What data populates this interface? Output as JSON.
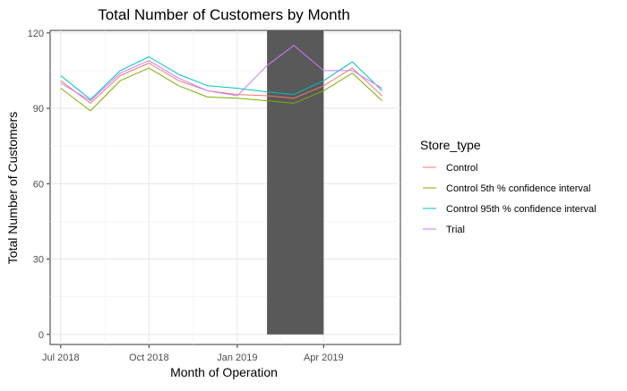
{
  "chart_data": {
    "type": "line",
    "title": "Total Number of Customers by Month",
    "xlabel": "Month of Operation",
    "ylabel": "Total Number of Customers",
    "x": [
      "2018-07",
      "2018-08",
      "2018-09",
      "2018-10",
      "2018-11",
      "2018-12",
      "2019-01",
      "2019-02",
      "2019-03",
      "2019-04",
      "2019-05",
      "2019-06"
    ],
    "x_ticks": [
      {
        "value": "2018-07",
        "label": "Jul 2018"
      },
      {
        "value": "2018-10",
        "label": "Oct 2018"
      },
      {
        "value": "2019-01",
        "label": "Jan 2019"
      },
      {
        "value": "2019-04",
        "label": "Apr 2019"
      }
    ],
    "y_ticks": [
      0,
      30,
      60,
      90,
      120
    ],
    "ylim": [
      -4,
      121
    ],
    "xlim": [
      "2018-06-20",
      "2019-06-20"
    ],
    "grid": true,
    "shaded_region": {
      "from": "2019-02",
      "to": "2019-04",
      "color": "#595959"
    },
    "legend": {
      "title": "Store_type",
      "position": "right"
    },
    "series": [
      {
        "name": "Control",
        "color": "#F8766D",
        "values": [
          101,
          92,
          103,
          108,
          101,
          97,
          95.5,
          95,
          94,
          99,
          106,
          95
        ]
      },
      {
        "name": "Control 5th % confidence interval",
        "color": "#7CAE00",
        "values": [
          98,
          89,
          101,
          106,
          99,
          94.5,
          94,
          93,
          92,
          97,
          104,
          93
        ]
      },
      {
        "name": "Control 95th % confidence interval",
        "color": "#00BFC4",
        "values": [
          103,
          93.5,
          105,
          110.5,
          103.5,
          99,
          98,
          96.5,
          95.5,
          101,
          108.5,
          97
        ]
      },
      {
        "name": "Trial",
        "color": "#C77CFF",
        "values": [
          100,
          93,
          104,
          109,
          102,
          97,
          95,
          107,
          115,
          105,
          105,
          98
        ]
      }
    ]
  }
}
